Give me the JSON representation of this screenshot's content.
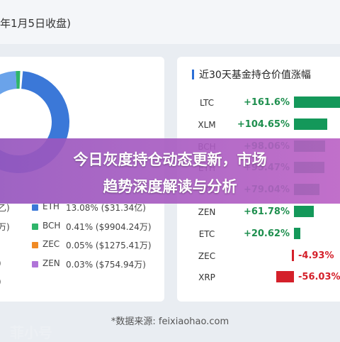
{
  "header": {
    "date_title": "年1月5日收盘)"
  },
  "left_card": {
    "legend": [
      {
        "cut": "乙)",
        "symbol": "ETH",
        "value": "13.08% ($31.34亿)",
        "color": "#3b78d8"
      },
      {
        "cut": "万)",
        "symbol": "BCH",
        "value": "0.41% ($9904.24万)",
        "color": "#2fb56a"
      },
      {
        "cut": "",
        "symbol": "ZEC",
        "value": "0.05% ($1275.41万)",
        "color": "#f08a24"
      },
      {
        "cut": ")",
        "symbol": "ZEN",
        "value": "0.03% ($754.94万)",
        "color": "#b074d8"
      },
      {
        "cut": ")",
        "symbol": "",
        "value": "",
        "color": ""
      }
    ],
    "donut_colors": {
      "main": "#3b78d8",
      "light": "#6aa3ea",
      "accent": "#2fb56a"
    }
  },
  "right_card": {
    "title": "近30天基金持仓价值涨幅",
    "rows": [
      {
        "symbol": "LTC",
        "value": "+161.6%",
        "pct": 161.6
      },
      {
        "symbol": "XLM",
        "value": "+104.65%",
        "pct": 104.65
      },
      {
        "symbol": "BCH",
        "value": "+98.06%",
        "pct": 98.06
      },
      {
        "symbol": "ETH",
        "value": "+95.47%",
        "pct": 95.47
      },
      {
        "symbol": "ETC",
        "value": "+79.04%",
        "pct": 79.04
      },
      {
        "symbol": "ZEN",
        "value": "+61.78%",
        "pct": 61.78
      },
      {
        "symbol": "ETC",
        "value": "+20.62%",
        "pct": 20.62
      },
      {
        "symbol": "ZEC",
        "value": "-4.93%",
        "pct": -4.93
      },
      {
        "symbol": "XRP",
        "value": "-56.03%",
        "pct": -56.03
      }
    ],
    "colors": {
      "positive": "#14985a",
      "negative": "#d4202a"
    }
  },
  "footer": {
    "source": "*数据来源: feixiaohao.com"
  },
  "overlay": {
    "headline_line1": "今日灰度持仓动态更新，市场",
    "headline_line2": "趋势深度解读与分析",
    "watermark": "菲小号"
  }
}
